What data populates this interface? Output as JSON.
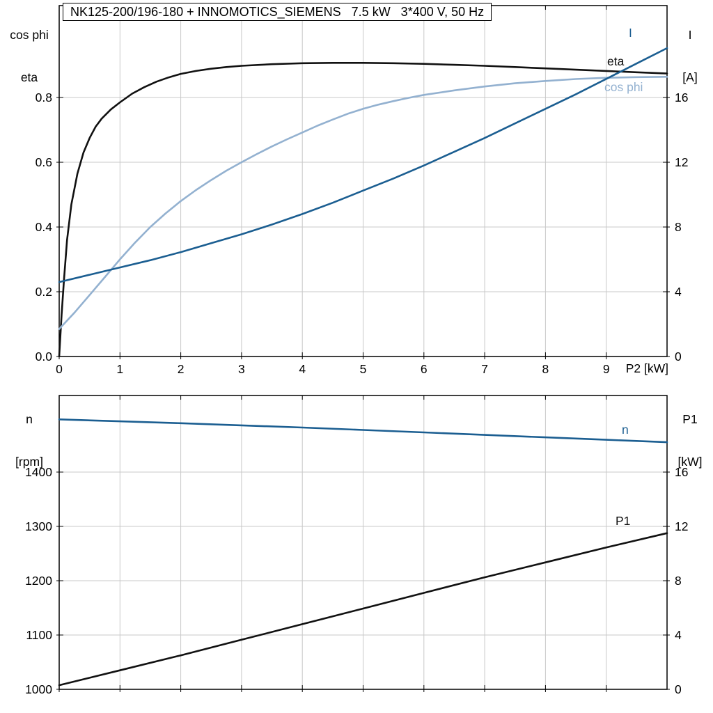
{
  "title_bar": {
    "text": "NK125-200/196-180 + INNOMOTICS_SIEMENS   7.5 kW   3*400 V, 50 Hz"
  },
  "colors": {
    "grid": "#c8c8c8",
    "axis": "#000000",
    "black_curve": "#111111",
    "dark_blue": "#1b5e91",
    "light_blue": "#93b1d0"
  },
  "chart_data": [
    {
      "type": "line",
      "id": "performance-curves",
      "grid": true,
      "legend_position": "inline-right",
      "x_axis": {
        "label": "P2 [kW]",
        "min": 0,
        "max": 10,
        "tick_values": [
          0,
          1,
          2,
          3,
          4,
          5,
          6,
          7,
          8,
          9
        ],
        "tick_labels": [
          "0",
          "1",
          "2",
          "3",
          "4",
          "5",
          "6",
          "7",
          "8",
          "9"
        ]
      },
      "y_left": {
        "label_lines": [
          "cos phi",
          "eta"
        ],
        "min": 0,
        "max": 1.084,
        "tick_values": [
          0,
          0.2,
          0.4,
          0.6,
          0.8
        ],
        "tick_labels": [
          "0.0",
          "0.2",
          "0.4",
          "0.6",
          "0.8"
        ]
      },
      "y_right": {
        "label_lines": [
          "I",
          "[A]"
        ],
        "min": 0,
        "max": 21.68,
        "tick_values": [
          0,
          4,
          8,
          12,
          16
        ],
        "tick_labels": [
          "0",
          "4",
          "8",
          "12",
          "16"
        ]
      },
      "series": [
        {
          "name": "eta",
          "axis": "left",
          "color": "#111111",
          "points": [
            [
              0,
              0
            ],
            [
              0.04,
              0.13
            ],
            [
              0.08,
              0.24
            ],
            [
              0.13,
              0.36
            ],
            [
              0.2,
              0.47
            ],
            [
              0.3,
              0.565
            ],
            [
              0.4,
              0.63
            ],
            [
              0.5,
              0.675
            ],
            [
              0.6,
              0.71
            ],
            [
              0.7,
              0.735
            ],
            [
              0.85,
              0.763
            ],
            [
              1,
              0.785
            ],
            [
              1.2,
              0.812
            ],
            [
              1.4,
              0.832
            ],
            [
              1.6,
              0.849
            ],
            [
              1.8,
              0.862
            ],
            [
              2,
              0.873
            ],
            [
              2.25,
              0.882
            ],
            [
              2.5,
              0.889
            ],
            [
              2.75,
              0.894
            ],
            [
              3,
              0.898
            ],
            [
              3.5,
              0.903
            ],
            [
              4,
              0.906
            ],
            [
              4.5,
              0.907
            ],
            [
              5,
              0.907
            ],
            [
              5.5,
              0.906
            ],
            [
              6,
              0.904
            ],
            [
              6.5,
              0.901
            ],
            [
              7,
              0.898
            ],
            [
              7.5,
              0.894
            ],
            [
              8,
              0.89
            ],
            [
              8.5,
              0.886
            ],
            [
              9,
              0.882
            ],
            [
              9.5,
              0.878
            ],
            [
              10,
              0.874
            ]
          ]
        },
        {
          "name": "cos phi",
          "axis": "left",
          "color": "#93b1d0",
          "points": [
            [
              0,
              0.085
            ],
            [
              0.25,
              0.135
            ],
            [
              0.5,
              0.19
            ],
            [
              0.75,
              0.245
            ],
            [
              1,
              0.3
            ],
            [
              1.25,
              0.352
            ],
            [
              1.5,
              0.4
            ],
            [
              1.75,
              0.442
            ],
            [
              2,
              0.48
            ],
            [
              2.25,
              0.514
            ],
            [
              2.5,
              0.545
            ],
            [
              2.75,
              0.574
            ],
            [
              3,
              0.6
            ],
            [
              3.25,
              0.625
            ],
            [
              3.5,
              0.649
            ],
            [
              3.75,
              0.671
            ],
            [
              4,
              0.692
            ],
            [
              4.25,
              0.713
            ],
            [
              4.5,
              0.732
            ],
            [
              4.75,
              0.75
            ],
            [
              5,
              0.765
            ],
            [
              5.25,
              0.778
            ],
            [
              5.5,
              0.789
            ],
            [
              5.75,
              0.799
            ],
            [
              6,
              0.808
            ],
            [
              6.5,
              0.822
            ],
            [
              7,
              0.834
            ],
            [
              7.5,
              0.844
            ],
            [
              8,
              0.851
            ],
            [
              8.5,
              0.857
            ],
            [
              9,
              0.861
            ],
            [
              9.5,
              0.863
            ],
            [
              10,
              0.864
            ]
          ]
        },
        {
          "name": "I",
          "axis": "right",
          "color": "#1b5e91",
          "points": [
            [
              0,
              4.6
            ],
            [
              0.5,
              5.05
            ],
            [
              1,
              5.5
            ],
            [
              1.5,
              5.95
            ],
            [
              2,
              6.45
            ],
            [
              2.5,
              7.0
            ],
            [
              3,
              7.55
            ],
            [
              3.5,
              8.15
            ],
            [
              4,
              8.8
            ],
            [
              4.5,
              9.5
            ],
            [
              5,
              10.25
            ],
            [
              5.5,
              11.0
            ],
            [
              6,
              11.8
            ],
            [
              6.5,
              12.65
            ],
            [
              7,
              13.5
            ],
            [
              7.5,
              14.4
            ],
            [
              8,
              15.3
            ],
            [
              8.5,
              16.2
            ],
            [
              9,
              17.15
            ],
            [
              9.5,
              18.1
            ],
            [
              10,
              19.05
            ]
          ]
        }
      ]
    },
    {
      "type": "line",
      "id": "speed-power-curves",
      "grid": true,
      "legend_position": "inline-right",
      "x_axis": {
        "label": "",
        "min": 0,
        "max": 10,
        "tick_values": [
          0,
          1,
          2,
          3,
          4,
          5,
          6,
          7,
          8,
          9
        ],
        "tick_labels": []
      },
      "y_left": {
        "label_lines": [
          "n",
          "[rpm]"
        ],
        "min": 1000,
        "max": 1541,
        "tick_values": [
          1000,
          1100,
          1200,
          1300,
          1400
        ],
        "tick_labels": [
          "1000",
          "1100",
          "1200",
          "1300",
          "1400"
        ]
      },
      "y_right": {
        "label_lines": [
          "P1",
          "[kW]"
        ],
        "min": 0,
        "max": 21.64,
        "tick_values": [
          0,
          4,
          8,
          12,
          16
        ],
        "tick_labels": [
          "0",
          "4",
          "8",
          "12",
          "16"
        ]
      },
      "series": [
        {
          "name": "n",
          "axis": "left",
          "color": "#1b5e91",
          "points": [
            [
              0,
              1497
            ],
            [
              1,
              1493.5
            ],
            [
              2,
              1490
            ],
            [
              3,
              1486
            ],
            [
              4,
              1482
            ],
            [
              5,
              1477.5
            ],
            [
              6,
              1473
            ],
            [
              7,
              1468.5
            ],
            [
              8,
              1464
            ],
            [
              9,
              1459.5
            ],
            [
              10,
              1455
            ]
          ]
        },
        {
          "name": "P1",
          "axis": "right",
          "color": "#111111",
          "points": [
            [
              0,
              0.3
            ],
            [
              1,
              1.4
            ],
            [
              2,
              2.5
            ],
            [
              3,
              3.65
            ],
            [
              4,
              4.8
            ],
            [
              5,
              5.95
            ],
            [
              6,
              7.1
            ],
            [
              7,
              8.25
            ],
            [
              8,
              9.35
            ],
            [
              9,
              10.45
            ],
            [
              10,
              11.5
            ]
          ]
        }
      ]
    }
  ]
}
